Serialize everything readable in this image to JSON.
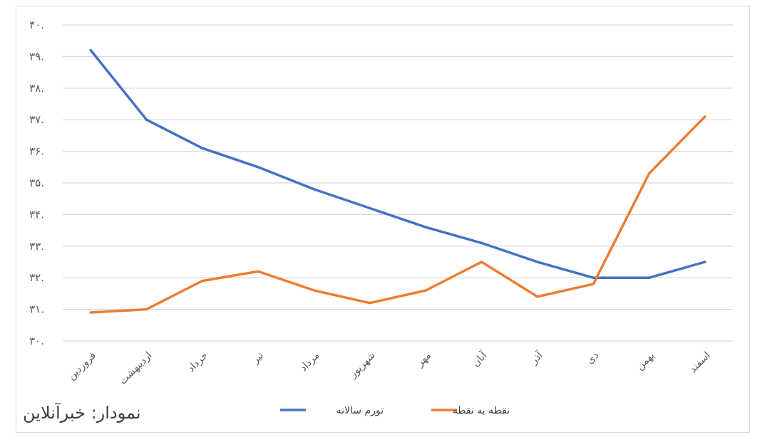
{
  "credit": "نمودار: خبرآنلاین",
  "colors": {
    "annual": "#4472C4",
    "point": "#ED7D31",
    "grid": "#d9d9d9",
    "text": "#595959"
  },
  "chart_data": {
    "type": "line",
    "title": "",
    "xlabel": "",
    "ylabel": "",
    "ylim": [
      30,
      40
    ],
    "ytick_labels": [
      "۳۰.",
      "۳۱.",
      "۳۲.",
      "۳۳.",
      "۳۴.",
      "۳۵.",
      "۳۶.",
      "۳۷.",
      "۳۸.",
      "۳۹.",
      "۴۰."
    ],
    "grid": true,
    "legend_position": "bottom",
    "categories": [
      "فروردین",
      "اردیبهشت",
      "خرداد",
      "تیر",
      "مرداد",
      "شهریور",
      "مهر",
      "آبان",
      "آذر",
      "دی",
      "بهمن",
      "اسفند"
    ],
    "series": [
      {
        "name": "تورم سالانه",
        "color": "#4472C4",
        "values": [
          39.2,
          37.0,
          36.1,
          35.5,
          34.8,
          34.2,
          33.6,
          33.1,
          32.5,
          32.0,
          32.0,
          32.5
        ]
      },
      {
        "name": "نقطه به نقطه",
        "color": "#ED7D31",
        "values": [
          30.9,
          31.0,
          31.9,
          32.2,
          31.6,
          31.2,
          31.6,
          32.5,
          31.4,
          31.8,
          35.3,
          37.1
        ]
      }
    ]
  }
}
